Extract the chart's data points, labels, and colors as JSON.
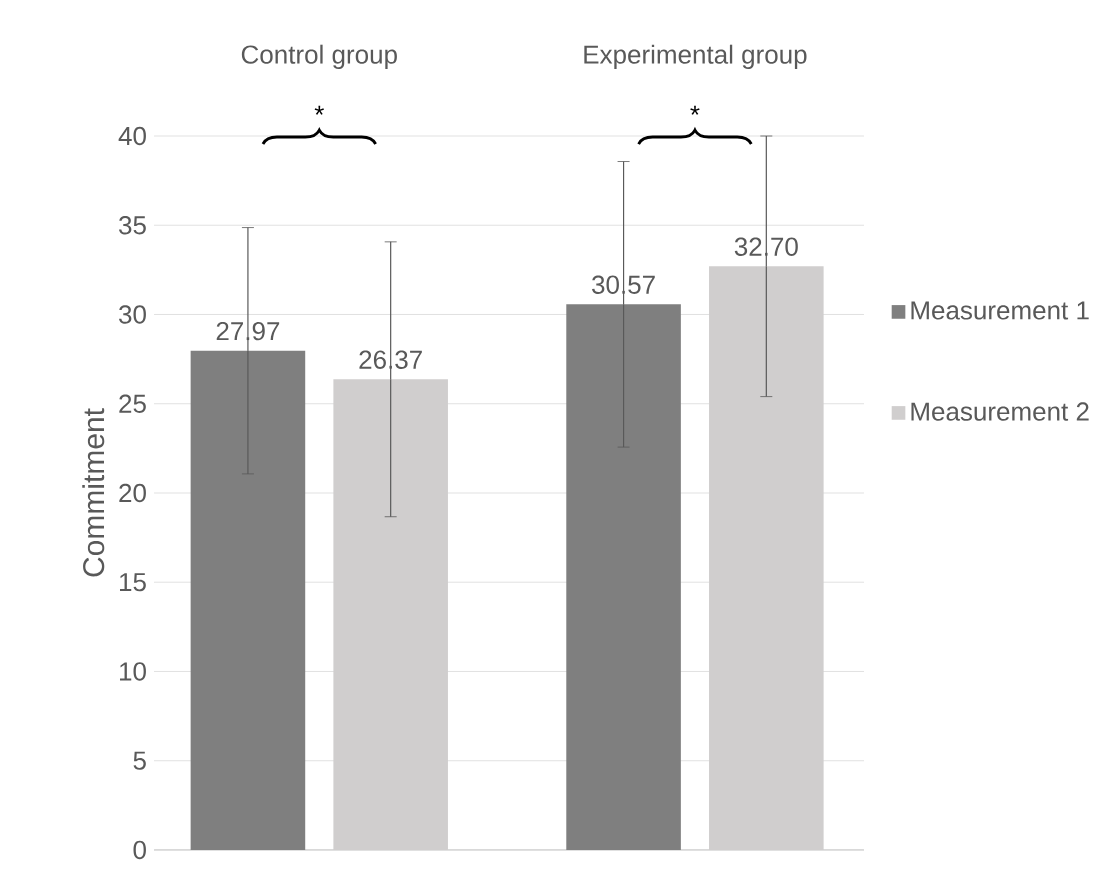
{
  "chart_data": {
    "type": "bar",
    "ylabel": "Commitment",
    "categories": [
      "Control group",
      "Experimental group"
    ],
    "series": [
      {
        "name": "Measurement 1",
        "color": "#7f7f7f",
        "values": [
          27.97,
          30.57
        ],
        "errors": [
          6.9,
          8.0
        ],
        "value_labels": [
          "27.97",
          "30.57"
        ]
      },
      {
        "name": "Measurement 2",
        "color": "#d0cece",
        "values": [
          26.37,
          32.7
        ],
        "errors": [
          7.7,
          7.3
        ],
        "value_labels": [
          "26.37",
          "32.70"
        ]
      }
    ],
    "ylim": [
      0,
      40
    ],
    "yticks": [
      0,
      5,
      10,
      15,
      20,
      25,
      30,
      35,
      40
    ],
    "grid": "y",
    "legend": "right",
    "annotations": [
      "*",
      "*"
    ]
  }
}
